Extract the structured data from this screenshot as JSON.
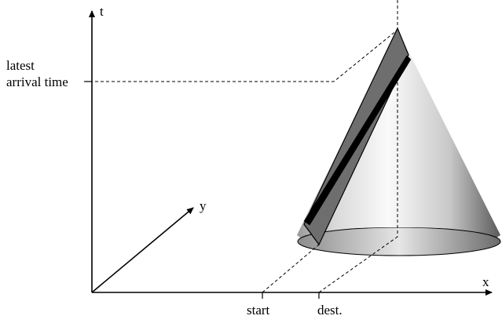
{
  "axes": {
    "t_label": "t",
    "x_label": "x",
    "y_label": "y"
  },
  "annotations": {
    "latest_line1": "latest",
    "latest_line2": "arrival time",
    "start_label": "start",
    "dest_label": "dest."
  },
  "colors": {
    "ink": "#000000",
    "cone_light": "#ffffff",
    "cone_dark": "#5a5a5a",
    "plane_fill": "#6e6e6e",
    "strip_fill": "#000000"
  }
}
